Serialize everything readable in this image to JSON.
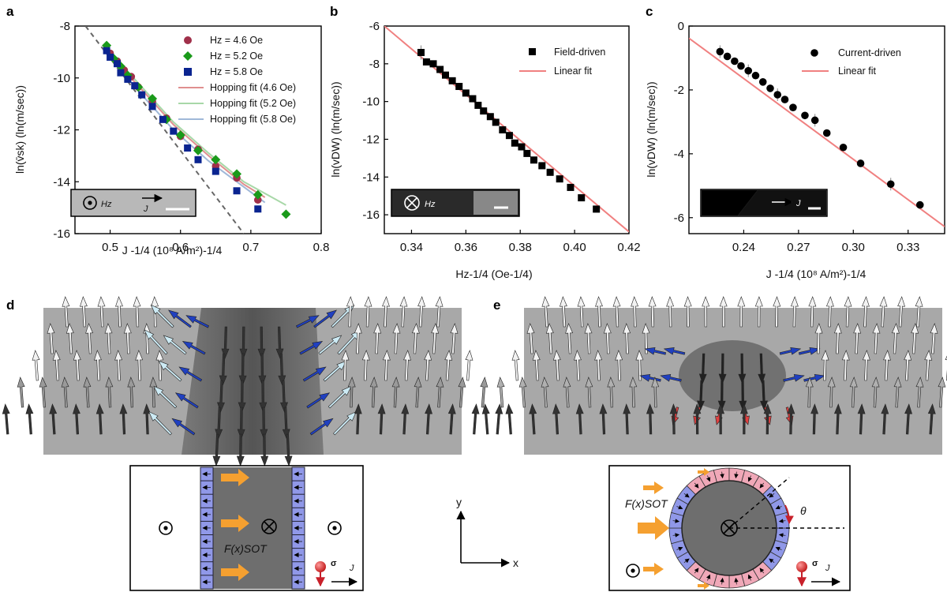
{
  "panel_labels": [
    "a",
    "b",
    "c",
    "d",
    "e"
  ],
  "colors": {
    "red": "#A0304A",
    "green": "#1A9A1A",
    "blue": "#0A2490",
    "fit_red": "#E08F8F",
    "fit_green": "#A8D8A8",
    "fit_blue": "#A0B8D8",
    "linear_fit": "#F08080",
    "purple": "#9098E8",
    "pink": "#F0A8B8",
    "orange": "#F5A030",
    "gray_bg": "#A8A8A8",
    "dark_gray": "#6A6A6A"
  },
  "chart_data": [
    {
      "type": "scatter",
      "xlabel": "J -1/4 (10⁸ A/m²)-1/4",
      "ylabel": "ln(v̄sk) (ln(m/sec))",
      "xlim": [
        0.45,
        0.8
      ],
      "ylim": [
        -16,
        -8
      ],
      "xticks": [
        "0.5",
        "0.6",
        "0.7",
        "0.8"
      ],
      "yticks": [
        "-8",
        "-10",
        "-12",
        "-14",
        "-16"
      ],
      "legend_position": "top-right",
      "series": [
        {
          "name": "Hz = 4.6 Oe",
          "marker": "circle",
          "x": [
            0.5,
            0.51,
            0.52,
            0.53,
            0.54,
            0.56,
            0.58,
            0.6,
            0.625,
            0.65,
            0.68,
            0.71
          ],
          "y": [
            -9.05,
            -9.35,
            -9.7,
            -9.95,
            -10.35,
            -10.9,
            -11.55,
            -12.25,
            -12.75,
            -13.4,
            -13.85,
            -14.7
          ]
        },
        {
          "name": "Hz = 5.2 Oe",
          "marker": "diamond",
          "x": [
            0.495,
            0.505,
            0.515,
            0.525,
            0.54,
            0.56,
            0.58,
            0.6,
            0.625,
            0.65,
            0.68,
            0.71,
            0.75
          ],
          "y": [
            -8.75,
            -9.25,
            -9.55,
            -9.9,
            -10.35,
            -10.8,
            -11.6,
            -12.2,
            -12.8,
            -13.15,
            -13.7,
            -14.5,
            -15.25
          ]
        },
        {
          "name": "Hz = 5.8 Oe",
          "marker": "square",
          "x": [
            0.495,
            0.5,
            0.51,
            0.515,
            0.525,
            0.535,
            0.545,
            0.56,
            0.575,
            0.59,
            0.61,
            0.625,
            0.65,
            0.68,
            0.71
          ],
          "y": [
            -8.95,
            -9.2,
            -9.45,
            -9.8,
            -10.05,
            -10.3,
            -10.65,
            -11.1,
            -11.6,
            -12.05,
            -12.7,
            -13.15,
            -13.6,
            -14.35,
            -15.05
          ]
        }
      ],
      "fits": [
        {
          "name": "Hopping fit (4.6 Oe)",
          "x": [
            0.49,
            0.54,
            0.59,
            0.64,
            0.69,
            0.72
          ],
          "y": [
            -8.9,
            -10.3,
            -11.8,
            -13.0,
            -14.1,
            -14.6
          ]
        },
        {
          "name": "Hopping fit (5.2 Oe)",
          "x": [
            0.49,
            0.54,
            0.59,
            0.64,
            0.69,
            0.75
          ],
          "y": [
            -8.75,
            -10.2,
            -11.7,
            -12.9,
            -14.0,
            -14.9
          ]
        },
        {
          "name": "Hopping fit (5.8 Oe)",
          "x": [
            0.49,
            0.54,
            0.59,
            0.64,
            0.69,
            0.72
          ],
          "y": [
            -8.9,
            -10.5,
            -12.0,
            -13.2,
            -14.2,
            -14.8
          ]
        }
      ],
      "dashed_line": {
        "x": [
          0.465,
          0.69
        ],
        "y": [
          -8.0,
          -16.0
        ]
      },
      "inset": {
        "field_label": "Hz",
        "current_label": "J"
      }
    },
    {
      "type": "scatter",
      "xlabel": "Hz-1/4 (Oe-1/4)",
      "ylabel": "ln(vDW) (ln(m/sec))",
      "xlim": [
        0.33,
        0.42
      ],
      "ylim": [
        -17,
        -6
      ],
      "xticks": [
        "0.34",
        "0.36",
        "0.38",
        "0.40",
        "0.42"
      ],
      "yticks": [
        "-6",
        "-8",
        "-10",
        "-12",
        "-14",
        "-16"
      ],
      "legend_position": "top-right",
      "series": [
        {
          "name": "Field-driven",
          "marker": "square",
          "x": [
            0.3435,
            0.3455,
            0.348,
            0.3505,
            0.3525,
            0.355,
            0.3575,
            0.36,
            0.3625,
            0.3645,
            0.3665,
            0.369,
            0.371,
            0.3735,
            0.376,
            0.378,
            0.3805,
            0.3825,
            0.385,
            0.388,
            0.391,
            0.3945,
            0.3985,
            0.4025,
            0.408
          ],
          "y": [
            -7.4,
            -7.9,
            -8.0,
            -8.3,
            -8.6,
            -8.9,
            -9.2,
            -9.55,
            -9.85,
            -10.2,
            -10.5,
            -10.8,
            -11.1,
            -11.5,
            -11.8,
            -12.2,
            -12.4,
            -12.75,
            -13.1,
            -13.4,
            -13.75,
            -14.1,
            -14.55,
            -15.1,
            -15.7
          ]
        }
      ],
      "fits": [
        {
          "name": "Linear fit",
          "x": [
            0.33,
            0.42
          ],
          "y": [
            -6.0,
            -16.9
          ]
        }
      ],
      "inset": {
        "field_label": "Hz"
      }
    },
    {
      "type": "scatter",
      "xlabel": "J -1/4 (10⁸ A/m²)-1/4",
      "ylabel": "ln(vDW) (ln(m/sec))",
      "xlim": [
        0.21,
        0.35
      ],
      "ylim": [
        -6.5,
        0
      ],
      "xticks": [
        "0.24",
        "0.27",
        "0.30",
        "0.33"
      ],
      "yticks": [
        "0",
        "-2",
        "-4",
        "-6"
      ],
      "legend_position": "top-right",
      "series": [
        {
          "name": "Current-driven",
          "marker": "circle",
          "x": [
            0.227,
            0.231,
            0.235,
            0.2385,
            0.2425,
            0.2465,
            0.2505,
            0.2545,
            0.2585,
            0.2625,
            0.267,
            0.2735,
            0.279,
            0.2855,
            0.2945,
            0.304,
            0.3205,
            0.3365
          ],
          "y": [
            -0.8,
            -0.95,
            -1.1,
            -1.25,
            -1.4,
            -1.55,
            -1.75,
            -1.95,
            -2.15,
            -2.3,
            -2.55,
            -2.8,
            -2.95,
            -3.35,
            -3.8,
            -4.3,
            -4.95,
            -5.6
          ]
        }
      ],
      "fits": [
        {
          "name": "Linear fit",
          "x": [
            0.21,
            0.35
          ],
          "y": [
            -0.38,
            -6.28
          ]
        }
      ],
      "inset": {
        "current_label": "J"
      }
    }
  ],
  "panel_d": {
    "force_label": "F(x)SOT",
    "spin_label": "σ",
    "current_label": "J"
  },
  "panel_e": {
    "force_label": "F(x)SOT",
    "angle_label": "θ",
    "spin_label": "σ",
    "current_label": "J"
  },
  "axes_diagram": {
    "y_label": "y",
    "x_label": "x"
  }
}
